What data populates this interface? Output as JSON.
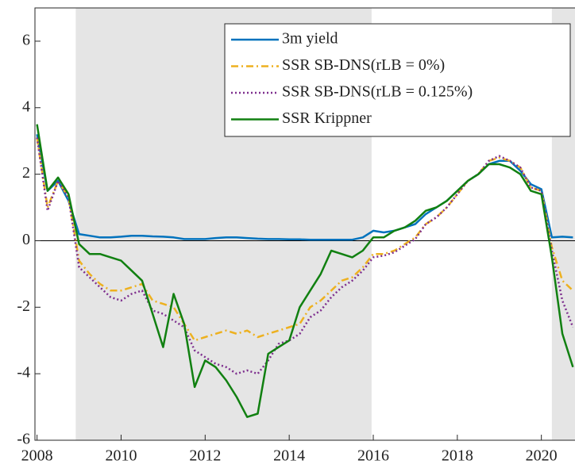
{
  "chart_data": {
    "type": "line",
    "x": [
      2008,
      2008.25,
      2008.5,
      2008.75,
      2009,
      2009.25,
      2009.5,
      2009.75,
      2010,
      2010.25,
      2010.5,
      2010.75,
      2011,
      2011.25,
      2011.5,
      2011.75,
      2012,
      2012.25,
      2012.5,
      2012.75,
      2013,
      2013.25,
      2013.5,
      2013.75,
      2014,
      2014.25,
      2014.5,
      2014.75,
      2015,
      2015.25,
      2015.5,
      2015.75,
      2016,
      2016.25,
      2016.5,
      2016.75,
      2017,
      2017.25,
      2017.5,
      2017.75,
      2018,
      2018.25,
      2018.5,
      2018.75,
      2019,
      2019.25,
      2019.5,
      2019.75,
      2020,
      2020.25,
      2020.5,
      2020.75
    ],
    "series": [
      {
        "name": "3m yield",
        "color": "#0072bd",
        "style": "solid",
        "values": [
          3.2,
          1.5,
          1.8,
          1.2,
          0.2,
          0.15,
          0.1,
          0.1,
          0.12,
          0.15,
          0.15,
          0.13,
          0.12,
          0.1,
          0.05,
          0.05,
          0.05,
          0.08,
          0.1,
          0.1,
          0.08,
          0.06,
          0.05,
          0.05,
          0.04,
          0.04,
          0.03,
          0.03,
          0.03,
          0.03,
          0.03,
          0.1,
          0.3,
          0.25,
          0.3,
          0.4,
          0.5,
          0.8,
          1.0,
          1.2,
          1.5,
          1.8,
          2.0,
          2.3,
          2.4,
          2.4,
          2.1,
          1.7,
          1.55,
          0.1,
          0.12,
          0.1
        ]
      },
      {
        "name": "SSR SB-DNS(rLB = 0%)",
        "color": "#edb120",
        "style": "dashdot",
        "values": [
          3.1,
          1.0,
          1.8,
          1.3,
          -0.6,
          -1.0,
          -1.3,
          -1.5,
          -1.5,
          -1.4,
          -1.3,
          -1.8,
          -1.9,
          -2.0,
          -2.5,
          -3.0,
          -2.9,
          -2.8,
          -2.7,
          -2.8,
          -2.7,
          -2.9,
          -2.8,
          -2.7,
          -2.6,
          -2.5,
          -2.0,
          -1.8,
          -1.5,
          -1.2,
          -1.1,
          -0.8,
          -0.4,
          -0.4,
          -0.3,
          -0.1,
          0.1,
          0.5,
          0.7,
          1.0,
          1.4,
          1.8,
          2.0,
          2.4,
          2.5,
          2.4,
          2.2,
          1.6,
          1.5,
          -0.2,
          -1.2,
          -1.5
        ]
      },
      {
        "name": "SSR SB-DNS(rLB = 0.125%)",
        "color": "#7e2f8e",
        "style": "dotted",
        "values": [
          3.1,
          0.9,
          1.8,
          1.3,
          -0.8,
          -1.1,
          -1.4,
          -1.7,
          -1.8,
          -1.6,
          -1.5,
          -2.1,
          -2.2,
          -2.4,
          -2.6,
          -3.3,
          -3.5,
          -3.7,
          -3.8,
          -4.0,
          -3.9,
          -4.0,
          -3.6,
          -3.1,
          -3.0,
          -2.8,
          -2.3,
          -2.1,
          -1.7,
          -1.4,
          -1.2,
          -0.9,
          -0.5,
          -0.45,
          -0.35,
          -0.15,
          0.05,
          0.5,
          0.7,
          1.0,
          1.4,
          1.8,
          2.0,
          2.4,
          2.55,
          2.4,
          2.2,
          1.6,
          1.5,
          -0.3,
          -1.8,
          -2.6
        ]
      },
      {
        "name": "SSR Krippner",
        "color": "#118011",
        "style": "solid",
        "values": [
          3.5,
          1.5,
          1.9,
          1.4,
          -0.1,
          -0.4,
          -0.4,
          -0.5,
          -0.6,
          -0.9,
          -1.2,
          -2.2,
          -3.2,
          -1.6,
          -2.5,
          -4.4,
          -3.6,
          -3.8,
          -4.2,
          -4.7,
          -5.3,
          -5.2,
          -3.4,
          -3.2,
          -3.0,
          -2.0,
          -1.5,
          -1.0,
          -0.3,
          -0.4,
          -0.5,
          -0.3,
          0.1,
          0.1,
          0.3,
          0.4,
          0.6,
          0.9,
          1.0,
          1.2,
          1.5,
          1.8,
          2.0,
          2.3,
          2.3,
          2.2,
          2.0,
          1.5,
          1.4,
          -0.5,
          -2.8,
          -3.8
        ]
      }
    ],
    "shaded_regions": [
      [
        2008.92,
        2015.96
      ],
      [
        2020.25,
        2020.8
      ]
    ],
    "shade_color": "#e5e5e5",
    "hline": 0,
    "xlim": [
      2007.95,
      2020.8
    ],
    "xticks": [
      2008,
      2010,
      2012,
      2014,
      2016,
      2018,
      2020
    ],
    "ylim": [
      -6,
      7
    ],
    "yticks": [
      -6,
      -4,
      -2,
      0,
      2,
      4,
      6
    ],
    "legend": "upper right"
  }
}
